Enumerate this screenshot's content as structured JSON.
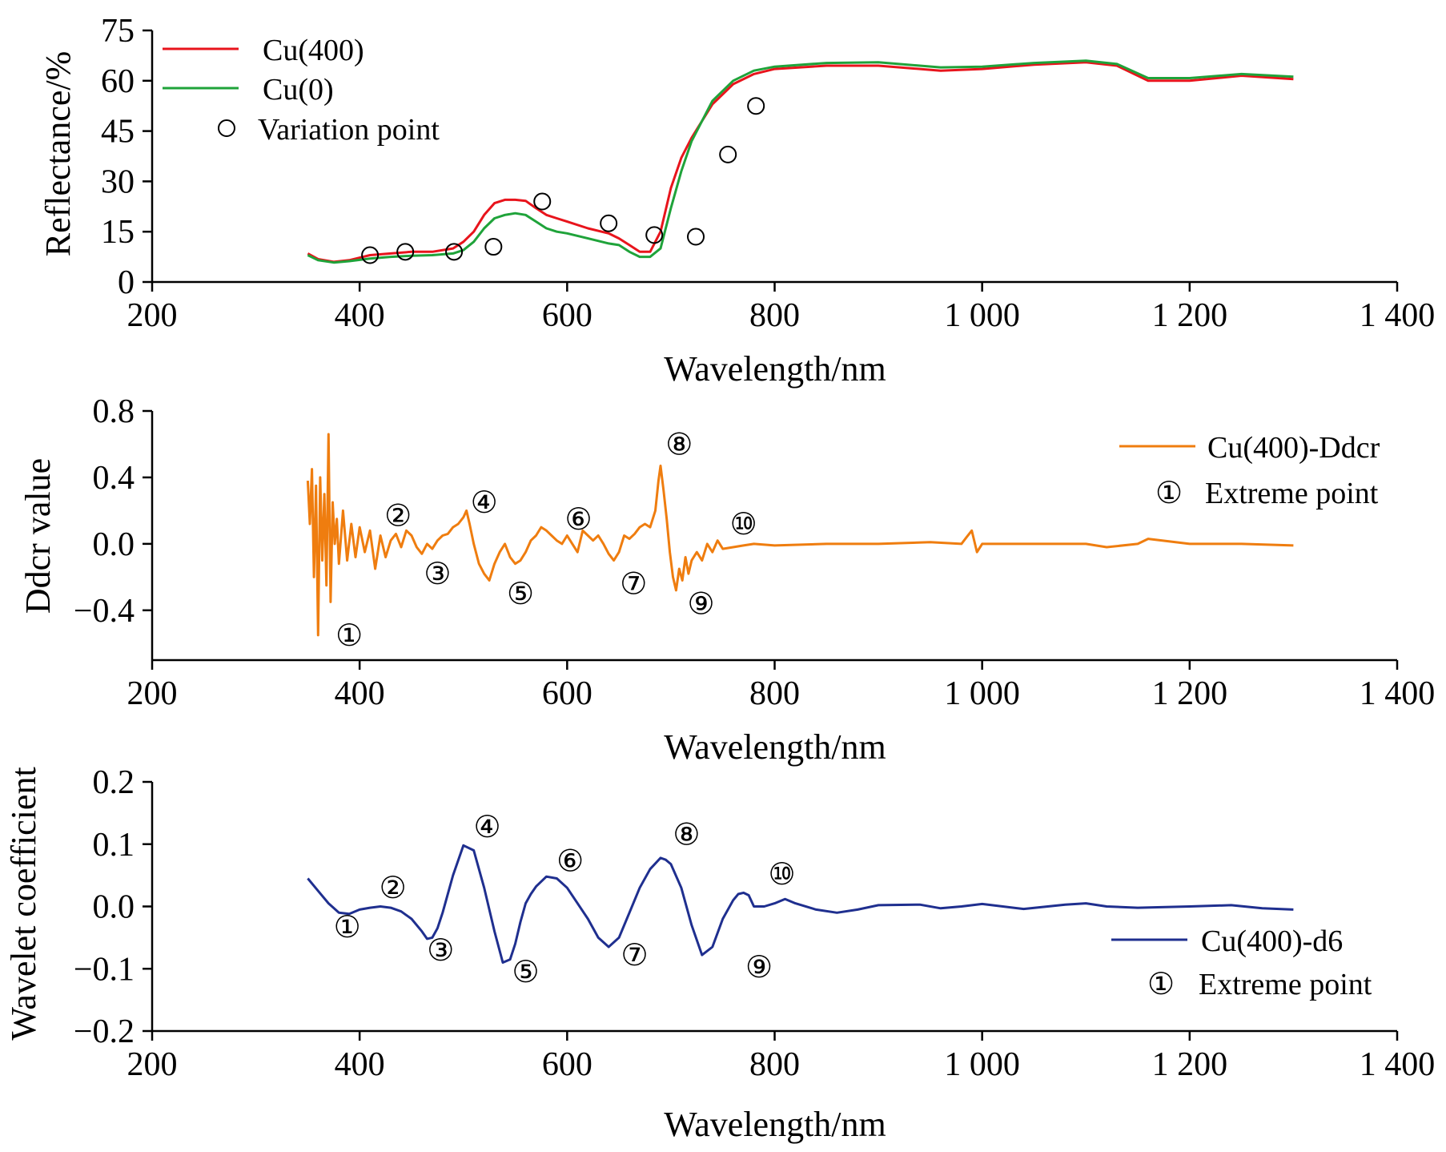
{
  "chart_data": [
    {
      "type": "line",
      "xlabel": "Wavelength/nm",
      "ylabel": "Reflectance/%",
      "xlim": [
        200,
        1400
      ],
      "ylim": [
        0,
        75
      ],
      "xticks": [
        200,
        400,
        600,
        800,
        1000,
        1200,
        1400
      ],
      "xtick_labels": [
        "200",
        "400",
        "600",
        "800",
        "1 000",
        "1 200",
        "1 400"
      ],
      "yticks": [
        0,
        15,
        30,
        45,
        60,
        75
      ],
      "ytick_labels": [
        "0",
        "15",
        "30",
        "45",
        "60",
        "75"
      ],
      "legend_position": "top-left",
      "series": [
        {
          "name": "Cu(400)",
          "color": "#e8141c",
          "x": [
            350,
            360,
            375,
            390,
            410,
            430,
            450,
            470,
            490,
            500,
            510,
            520,
            530,
            540,
            550,
            560,
            570,
            580,
            590,
            600,
            620,
            640,
            650,
            660,
            670,
            680,
            690,
            700,
            710,
            720,
            740,
            760,
            780,
            800,
            850,
            900,
            960,
            1000,
            1050,
            1100,
            1130,
            1160,
            1200,
            1250,
            1300
          ],
          "y": [
            8.5,
            6.8,
            6.0,
            6.5,
            8.0,
            8.5,
            9.0,
            9.0,
            10.0,
            12,
            15,
            20,
            23.5,
            24.5,
            24.5,
            24.2,
            22,
            20,
            19,
            18,
            16,
            14.5,
            13,
            11,
            9,
            9,
            15,
            28,
            37,
            43,
            53,
            59,
            62,
            63.5,
            64.5,
            64.5,
            63,
            63.5,
            64.8,
            65.5,
            64.5,
            60,
            60,
            61.5,
            60.5
          ]
        },
        {
          "name": "Cu(0)",
          "color": "#1fa33a",
          "x": [
            350,
            360,
            375,
            390,
            410,
            430,
            450,
            470,
            490,
            500,
            510,
            520,
            530,
            540,
            550,
            560,
            570,
            580,
            590,
            600,
            620,
            640,
            650,
            660,
            670,
            680,
            690,
            700,
            710,
            720,
            740,
            760,
            780,
            800,
            850,
            900,
            960,
            1000,
            1050,
            1100,
            1130,
            1160,
            1200,
            1250,
            1300
          ],
          "y": [
            8.0,
            6.5,
            5.8,
            6.2,
            7.0,
            7.5,
            7.8,
            8.0,
            8.5,
            9.5,
            12,
            16,
            19,
            20,
            20.5,
            20,
            18,
            16,
            15,
            14.5,
            13,
            11.5,
            11,
            9,
            7.5,
            7.5,
            10,
            22,
            33,
            42,
            54,
            60,
            63,
            64.2,
            65.3,
            65.5,
            64,
            64.2,
            65.3,
            66,
            65,
            60.8,
            60.8,
            62,
            61.2
          ]
        },
        {
          "name": "Variation point",
          "type": "scatter",
          "x": [
            410,
            444,
            491,
            529,
            576,
            640,
            684,
            724,
            755,
            782
          ],
          "y": [
            8,
            9,
            9,
            10.5,
            24,
            17.5,
            14,
            13.5,
            38,
            52.5
          ]
        }
      ]
    },
    {
      "type": "line",
      "xlabel": "Wavelength/nm",
      "ylabel": "Ddcr value",
      "xlim": [
        200,
        1400
      ],
      "ylim": [
        -0.7,
        0.8
      ],
      "xticks": [
        200,
        400,
        600,
        800,
        1000,
        1200,
        1400
      ],
      "xtick_labels": [
        "200",
        "400",
        "600",
        "800",
        "1 000",
        "1 200",
        "1 400"
      ],
      "yticks": [
        -0.4,
        0.0,
        0.4,
        0.8
      ],
      "ytick_labels": [
        "−0.4",
        "0.0",
        "0.4",
        "0.8"
      ],
      "legend_position": "top-right",
      "series": [
        {
          "name": "Cu(400)-Ddcr",
          "color": "#ef7d0f",
          "x": [
            350,
            352,
            354,
            356,
            358,
            360,
            362,
            364,
            366,
            368,
            370,
            372,
            374,
            376,
            378,
            380,
            384,
            388,
            392,
            396,
            400,
            405,
            410,
            415,
            420,
            425,
            430,
            435,
            440,
            445,
            450,
            455,
            460,
            465,
            470,
            475,
            480,
            485,
            490,
            495,
            500,
            503,
            506,
            510,
            515,
            520,
            525,
            530,
            535,
            540,
            545,
            550,
            555,
            560,
            565,
            570,
            575,
            580,
            585,
            590,
            595,
            600,
            605,
            610,
            615,
            620,
            625,
            630,
            635,
            640,
            645,
            650,
            655,
            660,
            665,
            670,
            675,
            680,
            685,
            688,
            690,
            693,
            696,
            699,
            702,
            705,
            708,
            711,
            714,
            717,
            720,
            725,
            730,
            735,
            740,
            745,
            750,
            760,
            770,
            780,
            800,
            850,
            900,
            950,
            980,
            985,
            990,
            995,
            1000,
            1050,
            1100,
            1120,
            1150,
            1160,
            1200,
            1250,
            1300
          ],
          "y": [
            0.38,
            0.12,
            0.45,
            -0.2,
            0.35,
            -0.55,
            0.4,
            -0.1,
            0.3,
            -0.25,
            0.66,
            -0.35,
            0.25,
            0.0,
            0.15,
            -0.12,
            0.2,
            -0.1,
            0.12,
            -0.08,
            0.1,
            -0.05,
            0.08,
            -0.15,
            0.05,
            -0.08,
            0.02,
            0.06,
            -0.02,
            0.08,
            0.05,
            -0.02,
            -0.06,
            0.0,
            -0.03,
            0.02,
            0.05,
            0.06,
            0.1,
            0.12,
            0.16,
            0.2,
            0.12,
            0.0,
            -0.12,
            -0.18,
            -0.22,
            -0.12,
            -0.05,
            0.0,
            -0.08,
            -0.12,
            -0.1,
            -0.05,
            0.02,
            0.05,
            0.1,
            0.08,
            0.05,
            0.02,
            0.0,
            0.05,
            0.0,
            -0.05,
            0.08,
            0.05,
            0.02,
            0.05,
            0.0,
            -0.06,
            -0.1,
            -0.05,
            0.05,
            0.03,
            0.06,
            0.1,
            0.12,
            0.1,
            0.2,
            0.38,
            0.47,
            0.32,
            0.15,
            -0.05,
            -0.2,
            -0.28,
            -0.15,
            -0.22,
            -0.08,
            -0.18,
            -0.1,
            -0.05,
            -0.1,
            0.0,
            -0.05,
            0.02,
            -0.03,
            -0.02,
            -0.01,
            0.0,
            -0.01,
            0.0,
            0.0,
            0.01,
            0.0,
            0.04,
            0.08,
            -0.05,
            0.0,
            0.0,
            0.0,
            -0.02,
            0.0,
            0.03,
            0.0,
            0.0,
            -0.01
          ]
        }
      ],
      "extreme_points": [
        {
          "label": "①",
          "x": 390,
          "y": -0.55
        },
        {
          "label": "②",
          "x": 437,
          "y": 0.17
        },
        {
          "label": "③",
          "x": 475,
          "y": -0.18
        },
        {
          "label": "④",
          "x": 520,
          "y": 0.25
        },
        {
          "label": "⑤",
          "x": 555,
          "y": -0.3
        },
        {
          "label": "⑥",
          "x": 611,
          "y": 0.15
        },
        {
          "label": "⑦",
          "x": 664,
          "y": -0.24
        },
        {
          "label": "⑧",
          "x": 708,
          "y": 0.6
        },
        {
          "label": "⑨",
          "x": 729,
          "y": -0.36
        },
        {
          "label": "⑩",
          "x": 770,
          "y": 0.12
        }
      ]
    },
    {
      "type": "line",
      "xlabel": "Wavelength/nm",
      "ylabel": "Wavelet coefficient",
      "xlim": [
        200,
        1400
      ],
      "ylim": [
        -0.2,
        0.2
      ],
      "xticks": [
        200,
        400,
        600,
        800,
        1000,
        1200,
        1400
      ],
      "xtick_labels": [
        "200",
        "400",
        "600",
        "800",
        "1 000",
        "1 200",
        "1 400"
      ],
      "yticks": [
        -0.2,
        -0.1,
        0.0,
        0.1,
        0.2
      ],
      "ytick_labels": [
        "−0.2",
        "−0.1",
        "0.0",
        "0.1",
        "0.2"
      ],
      "legend_position": "bottom-right",
      "series": [
        {
          "name": "Cu(400)-d6",
          "color": "#1f2f8f",
          "x": [
            350,
            360,
            370,
            380,
            390,
            400,
            410,
            420,
            430,
            440,
            450,
            460,
            465,
            470,
            475,
            480,
            490,
            500,
            510,
            520,
            530,
            538,
            545,
            550,
            555,
            560,
            565,
            570,
            575,
            580,
            590,
            600,
            610,
            620,
            630,
            640,
            650,
            660,
            670,
            680,
            690,
            695,
            700,
            710,
            720,
            730,
            740,
            750,
            760,
            765,
            770,
            775,
            780,
            790,
            800,
            810,
            820,
            840,
            860,
            880,
            900,
            940,
            960,
            980,
            1000,
            1040,
            1080,
            1100,
            1120,
            1150,
            1200,
            1240,
            1270,
            1300
          ],
          "y": [
            0.045,
            0.025,
            0.005,
            -0.01,
            -0.012,
            -0.005,
            -0.002,
            0.0,
            -0.002,
            -0.008,
            -0.02,
            -0.04,
            -0.052,
            -0.05,
            -0.035,
            -0.01,
            0.05,
            0.098,
            0.09,
            0.03,
            -0.04,
            -0.09,
            -0.085,
            -0.06,
            -0.025,
            0.005,
            0.02,
            0.032,
            0.04,
            0.048,
            0.045,
            0.03,
            0.005,
            -0.02,
            -0.05,
            -0.065,
            -0.05,
            -0.01,
            0.03,
            0.06,
            0.078,
            0.075,
            0.068,
            0.03,
            -0.03,
            -0.078,
            -0.065,
            -0.02,
            0.01,
            0.02,
            0.022,
            0.018,
            0.0,
            0.0,
            0.005,
            0.012,
            0.005,
            -0.005,
            -0.01,
            -0.005,
            0.002,
            0.003,
            -0.003,
            0.0,
            0.004,
            -0.004,
            0.003,
            0.005,
            0.0,
            -0.002,
            0.0,
            0.002,
            -0.003,
            -0.005
          ]
        }
      ],
      "extreme_points": [
        {
          "label": "①",
          "x": 388,
          "y": -0.033
        },
        {
          "label": "②",
          "x": 432,
          "y": 0.03
        },
        {
          "label": "③",
          "x": 478,
          "y": -0.07
        },
        {
          "label": "④",
          "x": 523,
          "y": 0.128
        },
        {
          "label": "⑤",
          "x": 560,
          "y": -0.105
        },
        {
          "label": "⑥",
          "x": 603,
          "y": 0.073
        },
        {
          "label": "⑦",
          "x": 665,
          "y": -0.078
        },
        {
          "label": "⑧",
          "x": 715,
          "y": 0.116
        },
        {
          "label": "⑨",
          "x": 785,
          "y": -0.097
        },
        {
          "label": "⑩",
          "x": 807,
          "y": 0.052
        }
      ]
    }
  ],
  "legends": {
    "top": [
      {
        "name": "Cu(400)",
        "kind": "line",
        "color": "#e8141c"
      },
      {
        "name": "Cu(0)",
        "kind": "line",
        "color": "#1fa33a"
      },
      {
        "name": "Variation point",
        "kind": "marker",
        "color": "#000000"
      }
    ],
    "middle": [
      {
        "name": "Cu(400)-Ddcr",
        "kind": "line",
        "color": "#ef7d0f"
      },
      {
        "name": "Extreme point",
        "kind": "symbol",
        "symbol": "①"
      }
    ],
    "bottom": [
      {
        "name": "Cu(400)-d6",
        "kind": "line",
        "color": "#1f2f8f"
      },
      {
        "name": "Extreme point",
        "kind": "symbol",
        "symbol": "①"
      }
    ]
  }
}
